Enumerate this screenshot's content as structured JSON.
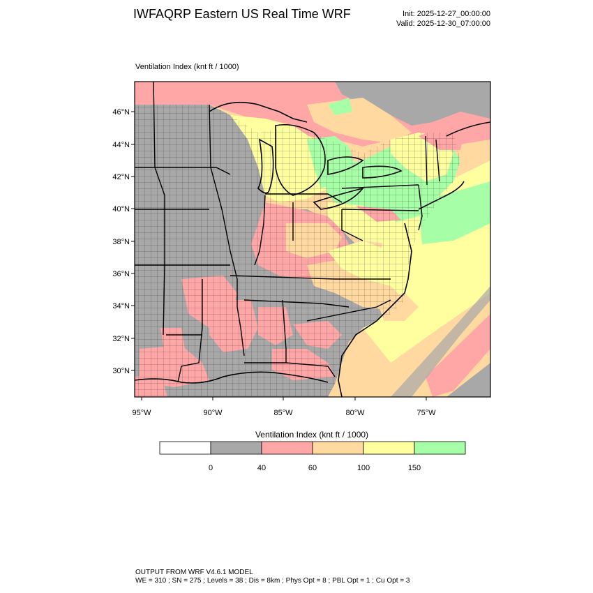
{
  "header": {
    "title": "IWFAQRP Eastern US Real Time WRF",
    "init": "Init: 2025-12-27_00:00:00",
    "valid": "Valid: 2025-12-30_07:00:00"
  },
  "map": {
    "subtitle": "Ventilation Index   (knt ft / 1000)",
    "lat_labels": [
      "46°N",
      "44°N",
      "42°N",
      "40°N",
      "38°N",
      "36°N",
      "34°N",
      "32°N",
      "30°N"
    ],
    "lon_labels": [
      "95°W",
      "90°W",
      "85°W",
      "80°W",
      "75°W"
    ],
    "fill_colors": {
      "below_0": "#ffffff",
      "0_40": "#a8a8a8",
      "40_60": "#ffa6a6",
      "60_100": "#ffd9a0",
      "100_150": "#ffffa0",
      "above_150": "#a6ffa6",
      "water": "#ffd9a0"
    }
  },
  "colorbar": {
    "title": "Ventilation Index  (knt ft / 1000)",
    "levels": [
      "0",
      "40",
      "60",
      "100",
      "150"
    ],
    "colors": [
      "#ffffff",
      "#a8a8a8",
      "#ffa6a6",
      "#ffd9a0",
      "#ffffa0",
      "#a6ffa6"
    ]
  },
  "footer": {
    "line1": "OUTPUT FROM WRF V4.6.1 MODEL",
    "line2": "WE = 310 ; SN = 275 ; Levels = 38 ; Dis = 8km ; Phys Opt = 8 ; PBL Opt = 1 ; Cu Opt = 3"
  }
}
